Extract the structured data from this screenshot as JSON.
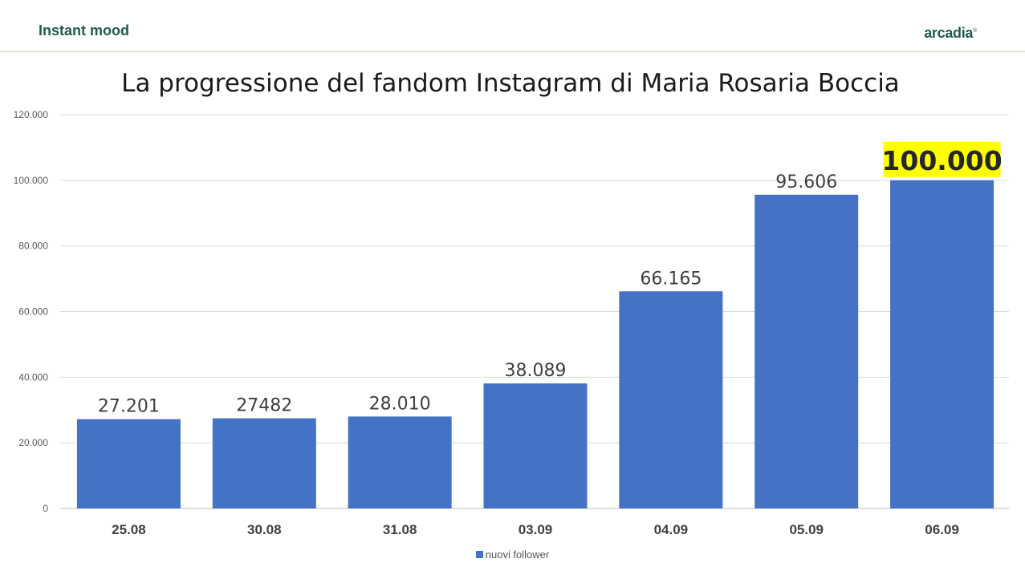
{
  "header": {
    "brand": "Instant mood",
    "logo": "arcadia",
    "logo_mark": "®"
  },
  "chart_data": {
    "type": "bar",
    "title": "La progressione del fandom Instagram di Maria Rosaria Boccia",
    "categories": [
      "25.08",
      "30.08",
      "31.08",
      "03.09",
      "04.09",
      "05.09",
      "06.09"
    ],
    "series": [
      {
        "name": "nuovi follower",
        "values": [
          27201,
          27482,
          28010,
          38089,
          66165,
          95606,
          100000
        ],
        "data_labels": [
          "27.201",
          "27482",
          "28.010",
          "38.089",
          "66.165",
          "95.606",
          "100.000"
        ],
        "highlight_index": 6
      }
    ],
    "y_ticks": [
      0,
      20000,
      40000,
      60000,
      80000,
      100000,
      120000
    ],
    "y_tick_labels": [
      "0",
      "20.000",
      "40.000",
      "60.000",
      "80.000",
      "100.000",
      "120.000"
    ],
    "ylim": [
      0,
      120000
    ],
    "grid": true,
    "legend_position": "bottom",
    "colors": {
      "bar": "#4472c4",
      "highlight_bg": "#ffff00",
      "grid": "#d9d9d9",
      "label": "#404040"
    }
  }
}
